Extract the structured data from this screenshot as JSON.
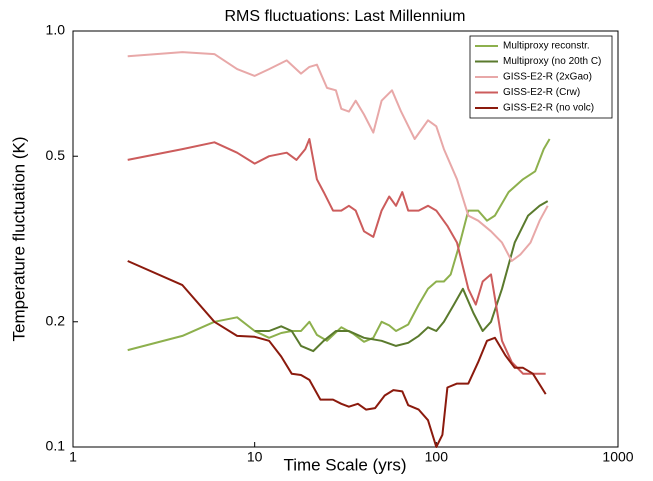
{
  "chart_data": {
    "type": "line",
    "title": "RMS fluctuations: Last Millennium",
    "x_label": "Time Scale (yrs)",
    "y_label": "Temperature fluctuation (K)",
    "xscale": "log",
    "yscale": "log",
    "xlim": [
      1,
      1000
    ],
    "ylim": [
      0.1,
      1
    ],
    "xticks": [
      1,
      10,
      100,
      1000
    ],
    "yticks": [
      0.1,
      0.2,
      0.5,
      {
        "value": 1,
        "label": "1.0"
      }
    ],
    "legend": "upper right",
    "series": [
      {
        "name": "Multiproxy reconstr.",
        "color": "#8db04d",
        "x": [
          2,
          4,
          6,
          8,
          10,
          12,
          14,
          16,
          18,
          20,
          22,
          25,
          30,
          35,
          40,
          45,
          50,
          55,
          60,
          70,
          80,
          90,
          100,
          110,
          120,
          135,
          150,
          170,
          190,
          210,
          250,
          300,
          350,
          390,
          420
        ],
        "values": [
          0.171,
          0.185,
          0.2,
          0.205,
          0.19,
          0.183,
          0.188,
          0.19,
          0.19,
          0.2,
          0.186,
          0.18,
          0.194,
          0.187,
          0.179,
          0.183,
          0.2,
          0.196,
          0.19,
          0.197,
          0.22,
          0.24,
          0.25,
          0.25,
          0.26,
          0.31,
          0.37,
          0.37,
          0.35,
          0.36,
          0.41,
          0.44,
          0.46,
          0.52,
          0.55
        ]
      },
      {
        "name": "Multiproxy (no 20th C)",
        "color": "#5a7a2d",
        "x": [
          10,
          12,
          14,
          16,
          18,
          21,
          24,
          28,
          33,
          40,
          50,
          60,
          70,
          80,
          90,
          100,
          110,
          125,
          140,
          160,
          180,
          200,
          230,
          270,
          320,
          370,
          410
        ],
        "values": [
          0.19,
          0.19,
          0.195,
          0.19,
          0.175,
          0.17,
          0.18,
          0.19,
          0.19,
          0.183,
          0.18,
          0.175,
          0.178,
          0.185,
          0.194,
          0.19,
          0.2,
          0.22,
          0.24,
          0.21,
          0.19,
          0.2,
          0.24,
          0.31,
          0.36,
          0.38,
          0.39
        ]
      },
      {
        "name": "GISS-E2-R (2xGao)",
        "color": "#e8a8a8",
        "x": [
          2,
          4,
          6,
          8,
          10,
          12,
          15,
          18,
          20,
          22,
          25,
          28,
          30,
          33,
          36,
          40,
          45,
          50,
          57,
          64,
          76,
          90,
          100,
          110,
          130,
          150,
          170,
          200,
          230,
          260,
          290,
          330,
          370,
          410
        ],
        "values": [
          0.87,
          0.89,
          0.88,
          0.81,
          0.78,
          0.81,
          0.85,
          0.79,
          0.82,
          0.83,
          0.73,
          0.72,
          0.65,
          0.64,
          0.68,
          0.63,
          0.57,
          0.68,
          0.72,
          0.64,
          0.55,
          0.61,
          0.59,
          0.52,
          0.44,
          0.36,
          0.35,
          0.33,
          0.31,
          0.28,
          0.29,
          0.31,
          0.35,
          0.38
        ]
      },
      {
        "name": "GISS-E2-R (Crw)",
        "color": "#cc5c5c",
        "x": [
          2,
          4,
          6,
          8,
          10,
          12,
          15,
          17,
          19,
          20,
          22,
          24,
          27,
          30,
          33,
          36,
          40,
          45,
          50,
          55,
          60,
          65,
          70,
          80,
          90,
          100,
          115,
          130,
          150,
          165,
          180,
          200,
          230,
          260,
          300,
          340,
          400
        ],
        "values": [
          0.49,
          0.52,
          0.54,
          0.51,
          0.48,
          0.5,
          0.51,
          0.49,
          0.52,
          0.55,
          0.44,
          0.41,
          0.37,
          0.37,
          0.38,
          0.37,
          0.33,
          0.32,
          0.37,
          0.4,
          0.38,
          0.41,
          0.37,
          0.37,
          0.38,
          0.37,
          0.34,
          0.31,
          0.24,
          0.22,
          0.25,
          0.26,
          0.18,
          0.16,
          0.15,
          0.15,
          0.15
        ]
      },
      {
        "name": "GISS-E2-R (no volc)",
        "color": "#8b1a0d",
        "x": [
          2,
          4,
          6,
          8,
          10,
          12,
          14,
          16,
          18,
          20,
          23,
          27,
          30,
          33,
          37,
          41,
          46,
          52,
          58,
          65,
          70,
          80,
          90,
          100,
          108,
          115,
          130,
          150,
          170,
          190,
          210,
          240,
          270,
          300,
          340,
          400
        ],
        "values": [
          0.28,
          0.245,
          0.2,
          0.185,
          0.184,
          0.18,
          0.165,
          0.15,
          0.149,
          0.145,
          0.13,
          0.13,
          0.127,
          0.125,
          0.127,
          0.123,
          0.124,
          0.133,
          0.137,
          0.136,
          0.126,
          0.123,
          0.116,
          0.1,
          0.107,
          0.139,
          0.142,
          0.142,
          0.16,
          0.18,
          0.183,
          0.166,
          0.155,
          0.155,
          0.15,
          0.134
        ]
      }
    ]
  }
}
